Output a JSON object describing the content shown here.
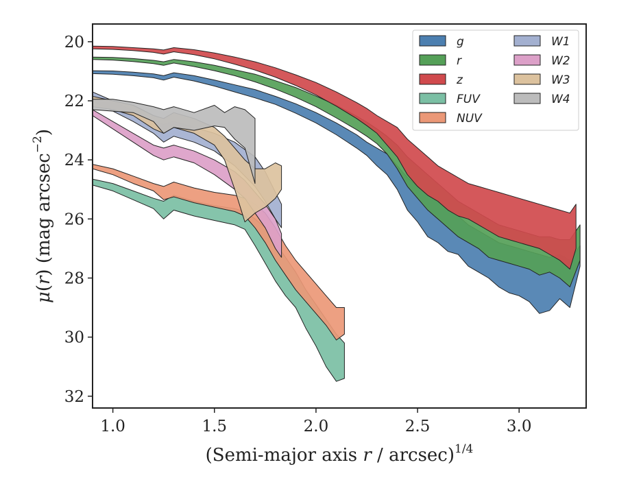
{
  "chart_data": {
    "type": "area",
    "xlabel_main": "(Semi-major axis ",
    "xlabel_var": "r",
    "xlabel_rest": " / arcsec)",
    "xlabel_sup": "1/4",
    "ylabel_mu": "μ",
    "ylabel_paren": "(",
    "ylabel_var": "r",
    "ylabel_rest": ") (mag arcsec",
    "ylabel_sup": "−2",
    "ylabel_close": ")",
    "xlim": [
      0.9,
      3.33
    ],
    "ylim": [
      32.4,
      19.4
    ],
    "y_inverted": true,
    "xticks": [
      1.0,
      1.5,
      2.0,
      2.5,
      3.0
    ],
    "xtick_labels": [
      "1.0",
      "1.5",
      "2.0",
      "2.5",
      "3.0"
    ],
    "yticks": [
      20,
      22,
      24,
      26,
      28,
      30,
      32
    ],
    "ytick_labels": [
      "20",
      "22",
      "24",
      "26",
      "28",
      "30",
      "32"
    ],
    "legend_position": "top-right",
    "legend_columns": 2,
    "series": [
      {
        "name": "g",
        "color": "#4c7fb0",
        "points": [
          [
            0.9,
            20.98,
            21.08
          ],
          [
            1.0,
            20.99,
            21.1
          ],
          [
            1.1,
            21.03,
            21.15
          ],
          [
            1.2,
            21.09,
            21.22
          ],
          [
            1.25,
            21.15,
            21.3
          ],
          [
            1.3,
            21.05,
            21.2
          ],
          [
            1.4,
            21.15,
            21.33
          ],
          [
            1.5,
            21.3,
            21.5
          ],
          [
            1.6,
            21.46,
            21.7
          ],
          [
            1.7,
            21.62,
            21.9
          ],
          [
            1.8,
            21.85,
            22.12
          ],
          [
            1.9,
            22.1,
            22.42
          ],
          [
            2.0,
            22.4,
            22.75
          ],
          [
            2.1,
            22.75,
            23.15
          ],
          [
            2.2,
            23.15,
            23.6
          ],
          [
            2.25,
            23.4,
            23.85
          ],
          [
            2.3,
            23.6,
            24.2
          ],
          [
            2.35,
            23.8,
            24.5
          ],
          [
            2.4,
            24.2,
            25.0
          ],
          [
            2.45,
            24.6,
            25.7
          ],
          [
            2.5,
            24.9,
            26.1
          ],
          [
            2.55,
            25.2,
            26.6
          ],
          [
            2.6,
            25.4,
            26.8
          ],
          [
            2.65,
            25.7,
            27.1
          ],
          [
            2.7,
            25.9,
            27.2
          ],
          [
            2.75,
            26.2,
            27.6
          ],
          [
            2.8,
            26.4,
            27.8
          ],
          [
            2.85,
            26.6,
            28.0
          ],
          [
            2.9,
            26.8,
            28.3
          ],
          [
            2.95,
            26.9,
            28.5
          ],
          [
            3.0,
            27.0,
            28.6
          ],
          [
            3.05,
            27.1,
            28.8
          ],
          [
            3.1,
            27.2,
            29.2
          ],
          [
            3.15,
            27.3,
            29.1
          ],
          [
            3.2,
            27.2,
            28.7
          ],
          [
            3.25,
            27.4,
            29.0
          ],
          [
            3.3,
            26.9,
            27.6
          ]
        ]
      },
      {
        "name": "r",
        "color": "#55a058",
        "points": [
          [
            0.9,
            20.52,
            20.6
          ],
          [
            1.0,
            20.53,
            20.62
          ],
          [
            1.1,
            20.57,
            20.67
          ],
          [
            1.2,
            20.63,
            20.74
          ],
          [
            1.25,
            20.68,
            20.8
          ],
          [
            1.3,
            20.6,
            20.72
          ],
          [
            1.4,
            20.68,
            20.84
          ],
          [
            1.5,
            20.8,
            20.98
          ],
          [
            1.6,
            20.95,
            21.15
          ],
          [
            1.7,
            21.1,
            21.36
          ],
          [
            1.8,
            21.32,
            21.6
          ],
          [
            1.9,
            21.55,
            21.88
          ],
          [
            2.0,
            21.84,
            22.2
          ],
          [
            2.1,
            22.15,
            22.58
          ],
          [
            2.2,
            22.52,
            22.98
          ],
          [
            2.25,
            22.72,
            23.2
          ],
          [
            2.3,
            22.95,
            23.45
          ],
          [
            2.35,
            23.2,
            23.8
          ],
          [
            2.4,
            23.5,
            24.3
          ],
          [
            2.45,
            23.9,
            24.9
          ],
          [
            2.5,
            24.2,
            25.3
          ],
          [
            2.55,
            24.5,
            25.7
          ],
          [
            2.6,
            24.8,
            26.0
          ],
          [
            2.65,
            25.1,
            26.3
          ],
          [
            2.7,
            25.4,
            26.6
          ],
          [
            2.75,
            25.6,
            26.8
          ],
          [
            2.8,
            25.8,
            27.0
          ],
          [
            2.85,
            26.0,
            27.3
          ],
          [
            2.9,
            26.2,
            27.4
          ],
          [
            2.95,
            26.3,
            27.5
          ],
          [
            3.0,
            26.4,
            27.6
          ],
          [
            3.05,
            26.5,
            27.7
          ],
          [
            3.1,
            26.6,
            27.9
          ],
          [
            3.15,
            26.6,
            27.8
          ],
          [
            3.2,
            26.7,
            28.0
          ],
          [
            3.25,
            26.7,
            28.3
          ],
          [
            3.3,
            26.2,
            27.4
          ]
        ]
      },
      {
        "name": "z",
        "color": "#d04a4d",
        "points": [
          [
            0.9,
            20.15,
            20.24
          ],
          [
            1.0,
            20.16,
            20.26
          ],
          [
            1.1,
            20.2,
            20.3
          ],
          [
            1.2,
            20.24,
            20.36
          ],
          [
            1.25,
            20.28,
            20.42
          ],
          [
            1.3,
            20.2,
            20.34
          ],
          [
            1.4,
            20.27,
            20.44
          ],
          [
            1.5,
            20.38,
            20.58
          ],
          [
            1.6,
            20.52,
            20.76
          ],
          [
            1.7,
            20.68,
            20.96
          ],
          [
            1.8,
            20.88,
            21.2
          ],
          [
            1.9,
            21.12,
            21.48
          ],
          [
            2.0,
            21.38,
            21.8
          ],
          [
            2.1,
            21.7,
            22.18
          ],
          [
            2.2,
            22.06,
            22.6
          ],
          [
            2.25,
            22.26,
            22.84
          ],
          [
            2.3,
            22.5,
            23.1
          ],
          [
            2.35,
            22.7,
            23.5
          ],
          [
            2.4,
            22.9,
            23.9
          ],
          [
            2.45,
            23.3,
            24.5
          ],
          [
            2.5,
            23.6,
            24.9
          ],
          [
            2.55,
            23.9,
            25.2
          ],
          [
            2.6,
            24.2,
            25.4
          ],
          [
            2.65,
            24.4,
            25.7
          ],
          [
            2.7,
            24.6,
            25.9
          ],
          [
            2.75,
            24.8,
            26.0
          ],
          [
            2.8,
            24.9,
            26.2
          ],
          [
            2.85,
            25.0,
            26.4
          ],
          [
            2.9,
            25.1,
            26.6
          ],
          [
            2.95,
            25.2,
            26.7
          ],
          [
            3.0,
            25.3,
            26.8
          ],
          [
            3.05,
            25.4,
            26.9
          ],
          [
            3.1,
            25.5,
            27.0
          ],
          [
            3.15,
            25.6,
            27.2
          ],
          [
            3.2,
            25.7,
            27.4
          ],
          [
            3.25,
            25.8,
            27.7
          ],
          [
            3.28,
            25.5,
            27.0
          ]
        ]
      },
      {
        "name": "FUV",
        "color": "#7bbfa4",
        "points": [
          [
            0.9,
            24.65,
            24.85
          ],
          [
            1.0,
            24.8,
            25.05
          ],
          [
            1.1,
            25.05,
            25.35
          ],
          [
            1.2,
            25.3,
            25.65
          ],
          [
            1.25,
            25.4,
            26.0
          ],
          [
            1.3,
            25.2,
            25.7
          ],
          [
            1.4,
            25.4,
            25.9
          ],
          [
            1.5,
            25.55,
            26.05
          ],
          [
            1.6,
            25.65,
            26.2
          ],
          [
            1.65,
            25.75,
            26.35
          ],
          [
            1.7,
            26.0,
            26.9
          ],
          [
            1.75,
            26.3,
            27.5
          ],
          [
            1.8,
            26.8,
            28.1
          ],
          [
            1.85,
            27.3,
            28.6
          ],
          [
            1.9,
            27.8,
            29.0
          ],
          [
            1.95,
            28.4,
            29.7
          ],
          [
            2.0,
            28.9,
            30.3
          ],
          [
            2.05,
            29.4,
            31.0
          ],
          [
            2.1,
            29.9,
            31.5
          ],
          [
            2.14,
            30.2,
            31.4
          ]
        ]
      },
      {
        "name": "NUV",
        "color": "#eb9877",
        "points": [
          [
            0.9,
            24.15,
            24.3
          ],
          [
            1.0,
            24.3,
            24.5
          ],
          [
            1.1,
            24.55,
            24.8
          ],
          [
            1.2,
            24.8,
            25.05
          ],
          [
            1.25,
            24.9,
            25.35
          ],
          [
            1.3,
            24.75,
            25.25
          ],
          [
            1.4,
            24.95,
            25.45
          ],
          [
            1.5,
            25.1,
            25.6
          ],
          [
            1.6,
            25.2,
            25.75
          ],
          [
            1.65,
            25.3,
            25.9
          ],
          [
            1.7,
            25.5,
            26.3
          ],
          [
            1.75,
            25.8,
            26.8
          ],
          [
            1.8,
            26.3,
            27.4
          ],
          [
            1.85,
            26.9,
            27.9
          ],
          [
            1.9,
            27.4,
            28.4
          ],
          [
            1.95,
            27.8,
            28.8
          ],
          [
            2.0,
            28.2,
            29.2
          ],
          [
            2.05,
            28.6,
            29.6
          ],
          [
            2.1,
            29.0,
            30.1
          ],
          [
            2.14,
            29.0,
            29.9
          ]
        ]
      },
      {
        "name": "W1",
        "color": "#a3b0d0",
        "points": [
          [
            0.9,
            21.7,
            22.0
          ],
          [
            1.0,
            22.0,
            22.35
          ],
          [
            1.1,
            22.35,
            22.7
          ],
          [
            1.2,
            22.7,
            23.1
          ],
          [
            1.25,
            22.8,
            23.4
          ],
          [
            1.3,
            22.7,
            23.2
          ],
          [
            1.4,
            22.9,
            23.4
          ],
          [
            1.5,
            23.1,
            23.7
          ],
          [
            1.6,
            23.4,
            24.2
          ],
          [
            1.7,
            23.9,
            24.9
          ],
          [
            1.75,
            24.4,
            25.4
          ],
          [
            1.8,
            25.1,
            26.0
          ],
          [
            1.83,
            25.5,
            26.3
          ]
        ]
      },
      {
        "name": "W2",
        "color": "#dca0c8",
        "points": [
          [
            0.9,
            22.3,
            22.5
          ],
          [
            1.0,
            22.7,
            22.95
          ],
          [
            1.1,
            23.1,
            23.4
          ],
          [
            1.2,
            23.5,
            23.85
          ],
          [
            1.25,
            23.6,
            24.0
          ],
          [
            1.3,
            23.5,
            23.9
          ],
          [
            1.4,
            23.7,
            24.1
          ],
          [
            1.5,
            24.0,
            24.5
          ],
          [
            1.6,
            24.4,
            25.0
          ],
          [
            1.65,
            24.7,
            25.3
          ],
          [
            1.7,
            25.1,
            25.8
          ],
          [
            1.75,
            25.5,
            26.3
          ],
          [
            1.8,
            26.0,
            27.0
          ],
          [
            1.83,
            26.5,
            27.3
          ]
        ]
      },
      {
        "name": "W3",
        "color": "#dcc29e",
        "points": [
          [
            0.9,
            21.85,
            22.2
          ],
          [
            1.0,
            22.0,
            22.3
          ],
          [
            1.1,
            22.15,
            22.5
          ],
          [
            1.2,
            22.5,
            22.95
          ],
          [
            1.25,
            22.6,
            23.1
          ],
          [
            1.3,
            22.4,
            22.9
          ],
          [
            1.4,
            22.6,
            23.1
          ],
          [
            1.5,
            22.9,
            23.5
          ],
          [
            1.55,
            23.2,
            24.0
          ],
          [
            1.6,
            23.6,
            25.0
          ],
          [
            1.65,
            24.0,
            26.1
          ],
          [
            1.7,
            24.3,
            25.8
          ],
          [
            1.75,
            24.3,
            25.6
          ],
          [
            1.8,
            24.1,
            25.3
          ],
          [
            1.83,
            24.2,
            25.0
          ]
        ]
      },
      {
        "name": "W4",
        "color": "#bcbcbc",
        "points": [
          [
            0.9,
            21.95,
            22.3
          ],
          [
            1.0,
            21.95,
            22.35
          ],
          [
            1.1,
            22.05,
            22.4
          ],
          [
            1.2,
            22.2,
            22.7
          ],
          [
            1.25,
            22.3,
            23.1
          ],
          [
            1.3,
            22.2,
            22.9
          ],
          [
            1.4,
            22.4,
            23.0
          ],
          [
            1.5,
            22.15,
            22.85
          ],
          [
            1.55,
            22.4,
            22.9
          ],
          [
            1.6,
            22.2,
            23.3
          ],
          [
            1.65,
            22.3,
            23.6
          ],
          [
            1.7,
            22.6,
            24.8
          ]
        ]
      }
    ]
  }
}
